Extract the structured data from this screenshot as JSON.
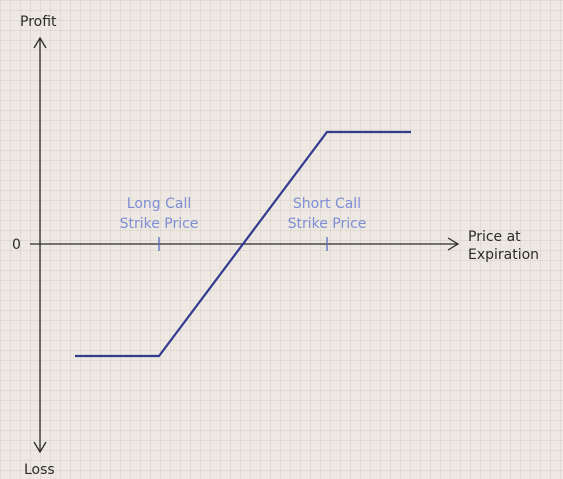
{
  "chart_data": {
    "type": "line",
    "title": "",
    "ylabel_top": "Profit",
    "ylabel_bottom": "Loss",
    "zero_label": "0",
    "xlabel_lines": [
      "Price at",
      "Expiration"
    ],
    "strikes": [
      {
        "name": "long_call",
        "label_lines": [
          "Long Call",
          "Strike Price"
        ],
        "x": 1
      },
      {
        "name": "short_call",
        "label_lines": [
          "Short Call",
          "Strike Price"
        ],
        "x": 3
      }
    ],
    "series": [
      {
        "points": [
          [
            0,
            -1
          ],
          [
            1,
            -1
          ],
          [
            3,
            1
          ],
          [
            4,
            1
          ]
        ]
      }
    ],
    "xlim": [
      -0.4,
      5
    ],
    "ylim": [
      -1.8,
      1.8
    ],
    "grid": true,
    "colors": {
      "line": "#333b8f",
      "axis": "#2b2b2b",
      "strike_label": "#7f8ed6",
      "strike_tick": "#5a6bbf"
    }
  }
}
